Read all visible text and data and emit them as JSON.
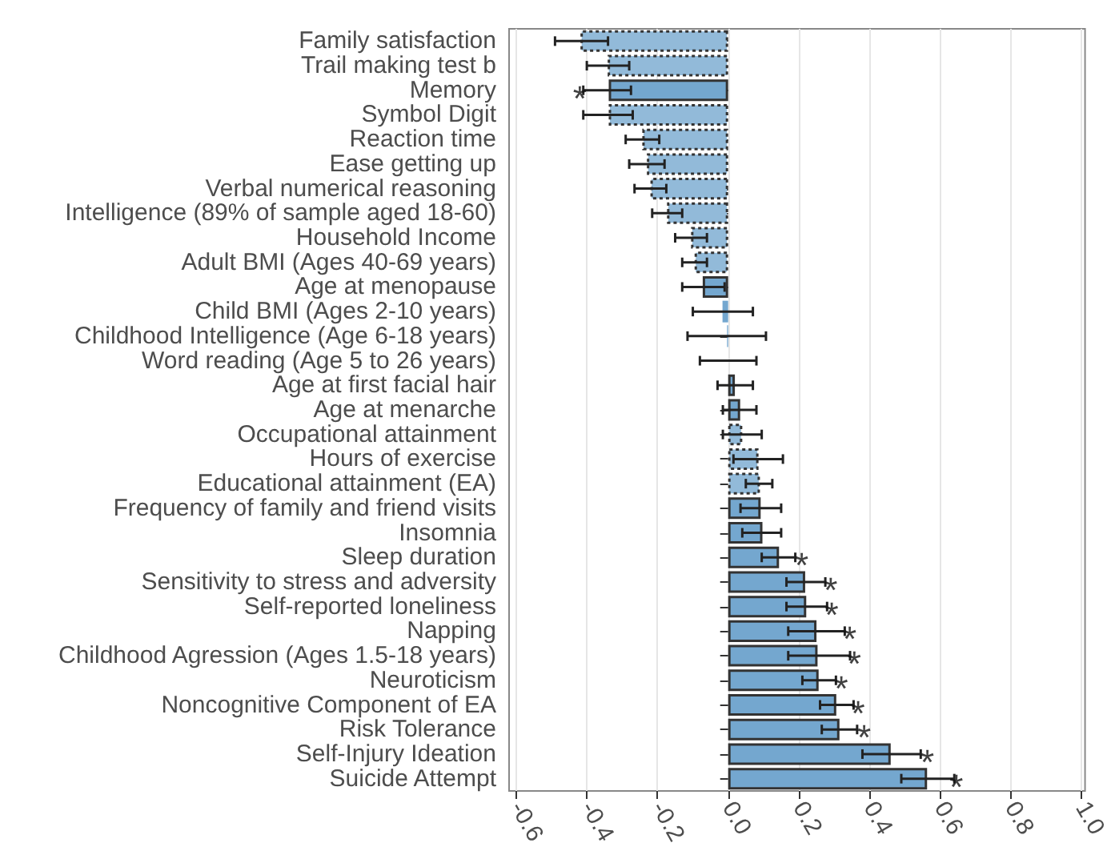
{
  "chart_data": {
    "type": "bar",
    "orientation": "horizontal",
    "grid": "x",
    "categories": [
      "Family satisfaction",
      "Trail making test b",
      "Memory",
      "Symbol Digit",
      "Reaction time",
      "Ease getting up",
      "Verbal numerical reasoning",
      "Intelligence (89% of sample aged 18-60)",
      "Household Income",
      "Adult BMI (Ages 40-69 years)",
      "Age at menopause",
      "Child BMI (Ages 2-10 years)",
      "Childhood Intelligence (Age 6-18 years)",
      "Word reading (Age 5 to 26 years)",
      "Age at first facial hair",
      "Age at menarche",
      "Occupational attainment",
      "Hours of exercise",
      "Educational attainment (EA)",
      "Frequency of family and friend visits",
      "Insomnia",
      "Sleep duration",
      "Sensitivity to stress and adversity",
      "Self-reported loneliness",
      "Napping",
      "Childhood Agression (Ages 1.5-18 years)",
      "Neuroticism",
      "Noncognitive Component of EA",
      "Risk Tolerance",
      "Self-Injury Ideation",
      "Suicide Attempt"
    ],
    "series": [
      {
        "color": "#92bad9",
        "line_style": "dotted",
        "values": [
          -0.418,
          -0.341,
          null,
          -0.338,
          -0.243,
          -0.23,
          -0.22,
          -0.173,
          -0.105,
          -0.095,
          null,
          null,
          null,
          null,
          null,
          null,
          0.04,
          0.086,
          0.09,
          null,
          null,
          null,
          null,
          null,
          null,
          null,
          null,
          null,
          null,
          null,
          null
        ],
        "errors": [
          [
            -0.49,
            -0.34
          ],
          [
            -0.4,
            -0.28
          ],
          null,
          [
            -0.41,
            -0.27
          ],
          [
            -0.29,
            -0.195
          ],
          [
            -0.28,
            -0.18
          ],
          [
            -0.265,
            -0.175
          ],
          [
            -0.215,
            -0.13
          ],
          [
            -0.15,
            -0.06
          ],
          [
            -0.13,
            -0.06
          ],
          null,
          null,
          null,
          null,
          null,
          null,
          [
            -0.015,
            0.095
          ],
          [
            0.015,
            0.155
          ],
          [
            0.05,
            0.125
          ],
          null,
          null,
          null,
          null,
          null,
          null,
          null,
          null,
          null,
          null,
          null,
          null
        ]
      },
      {
        "color": "#74a7cf",
        "line_style": "solid",
        "values": [
          null,
          null,
          -0.338,
          null,
          null,
          null,
          null,
          null,
          null,
          null,
          -0.072,
          -0.016,
          -0.003,
          0.0,
          0.019,
          0.034,
          null,
          null,
          null,
          0.092,
          0.097,
          0.144,
          0.218,
          0.221,
          0.25,
          0.253,
          0.256,
          0.306,
          0.315,
          0.46,
          0.563
        ],
        "errors": [
          null,
          null,
          [
            -0.41,
            -0.275
          ],
          null,
          null,
          null,
          null,
          null,
          null,
          null,
          [
            -0.13,
            -0.01
          ],
          [
            -0.1,
            0.07
          ],
          [
            -0.115,
            0.107
          ],
          [
            -0.08,
            0.08
          ],
          [
            -0.03,
            0.07
          ],
          [
            -0.015,
            0.08
          ],
          null,
          null,
          null,
          [
            0.035,
            0.15
          ],
          [
            0.04,
            0.15
          ],
          [
            0.095,
            0.19
          ],
          [
            0.165,
            0.275
          ],
          [
            0.165,
            0.28
          ],
          [
            0.17,
            0.33
          ],
          [
            0.17,
            0.345
          ],
          [
            0.21,
            0.305
          ],
          [
            0.26,
            0.355
          ],
          [
            0.265,
            0.365
          ],
          [
            0.38,
            0.545
          ],
          [
            0.49,
            0.64
          ]
        ]
      }
    ],
    "xlim": [
      -0.62,
      1.01
    ],
    "xticks": [
      -0.6,
      -0.4,
      -0.2,
      {
        "value": 0,
        "label": "0.0"
      },
      0.2,
      0.4,
      0.6,
      0.8,
      {
        "value": 1,
        "label": "1.0"
      }
    ],
    "annotations": [
      {
        "text": "*",
        "x": -0.42,
        "y": "Memory"
      },
      {
        "text": "*",
        "x": 0.208,
        "y": "Sleep duration"
      },
      {
        "text": "*",
        "x": 0.29,
        "y": "Sensitivity to stress and adversity"
      },
      {
        "text": "*",
        "x": 0.293,
        "y": "Self-reported loneliness"
      },
      {
        "text": "*",
        "x": 0.344,
        "y": "Napping"
      },
      {
        "text": "*",
        "x": 0.357,
        "y": "Childhood Agression (Ages 1.5-18 years)"
      },
      {
        "text": "*",
        "x": 0.32,
        "y": "Neuroticism"
      },
      {
        "text": "*",
        "x": 0.368,
        "y": "Noncognitive Component of EA"
      },
      {
        "text": "*",
        "x": 0.385,
        "y": "Risk Tolerance"
      },
      {
        "text": "*",
        "x": 0.564,
        "y": "Self-Injury Ideation"
      },
      {
        "text": "*",
        "x": 0.646,
        "y": "Suicide Attempt"
      }
    ]
  }
}
